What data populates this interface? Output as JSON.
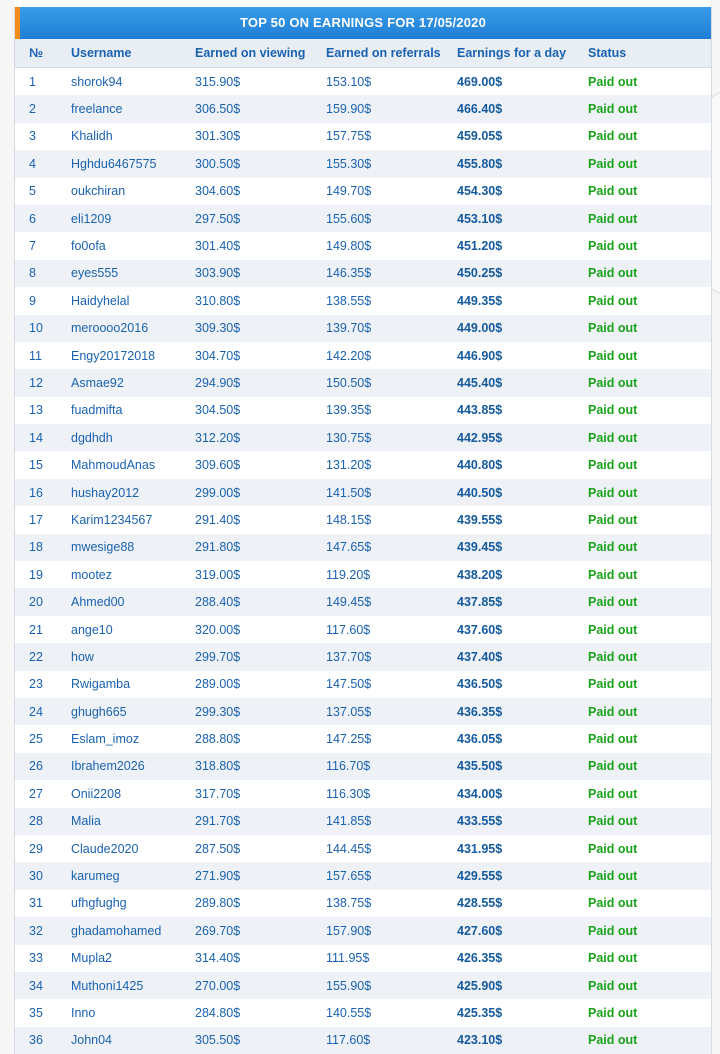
{
  "title": "TOP 50 ON EARNINGS FOR 17/05/2020",
  "columns": {
    "num": "№",
    "username": "Username",
    "viewing": "Earned on viewing",
    "referrals": "Earned on referrals",
    "day": "Earnings for a day",
    "status": "Status"
  },
  "rows": [
    {
      "n": "1",
      "user": "shorok94",
      "view": "315.90$",
      "ref": "153.10$",
      "day": "469.00$",
      "status": "Paid out"
    },
    {
      "n": "2",
      "user": "freelance",
      "view": "306.50$",
      "ref": "159.90$",
      "day": "466.40$",
      "status": "Paid out"
    },
    {
      "n": "3",
      "user": "Khalidh",
      "view": "301.30$",
      "ref": "157.75$",
      "day": "459.05$",
      "status": "Paid out"
    },
    {
      "n": "4",
      "user": "Hghdu6467575",
      "view": "300.50$",
      "ref": "155.30$",
      "day": "455.80$",
      "status": "Paid out"
    },
    {
      "n": "5",
      "user": "oukchiran",
      "view": "304.60$",
      "ref": "149.70$",
      "day": "454.30$",
      "status": "Paid out"
    },
    {
      "n": "6",
      "user": "eli1209",
      "view": "297.50$",
      "ref": "155.60$",
      "day": "453.10$",
      "status": "Paid out"
    },
    {
      "n": "7",
      "user": "fo0ofa",
      "view": "301.40$",
      "ref": "149.80$",
      "day": "451.20$",
      "status": "Paid out"
    },
    {
      "n": "8",
      "user": "eyes555",
      "view": "303.90$",
      "ref": "146.35$",
      "day": "450.25$",
      "status": "Paid out"
    },
    {
      "n": "9",
      "user": "Haidyhelal",
      "view": "310.80$",
      "ref": "138.55$",
      "day": "449.35$",
      "status": "Paid out"
    },
    {
      "n": "10",
      "user": "meroooo2016",
      "view": "309.30$",
      "ref": "139.70$",
      "day": "449.00$",
      "status": "Paid out"
    },
    {
      "n": "11",
      "user": "Engy20172018",
      "view": "304.70$",
      "ref": "142.20$",
      "day": "446.90$",
      "status": "Paid out"
    },
    {
      "n": "12",
      "user": "Asmae92",
      "view": "294.90$",
      "ref": "150.50$",
      "day": "445.40$",
      "status": "Paid out"
    },
    {
      "n": "13",
      "user": "fuadmifta",
      "view": "304.50$",
      "ref": "139.35$",
      "day": "443.85$",
      "status": "Paid out"
    },
    {
      "n": "14",
      "user": "dgdhdh",
      "view": "312.20$",
      "ref": "130.75$",
      "day": "442.95$",
      "status": "Paid out"
    },
    {
      "n": "15",
      "user": "MahmoudAnas",
      "view": "309.60$",
      "ref": "131.20$",
      "day": "440.80$",
      "status": "Paid out"
    },
    {
      "n": "16",
      "user": "hushay2012",
      "view": "299.00$",
      "ref": "141.50$",
      "day": "440.50$",
      "status": "Paid out"
    },
    {
      "n": "17",
      "user": "Karim1234567",
      "view": "291.40$",
      "ref": "148.15$",
      "day": "439.55$",
      "status": "Paid out"
    },
    {
      "n": "18",
      "user": "mwesige88",
      "view": "291.80$",
      "ref": "147.65$",
      "day": "439.45$",
      "status": "Paid out"
    },
    {
      "n": "19",
      "user": "mootez",
      "view": "319.00$",
      "ref": "119.20$",
      "day": "438.20$",
      "status": "Paid out"
    },
    {
      "n": "20",
      "user": "Ahmed00",
      "view": "288.40$",
      "ref": "149.45$",
      "day": "437.85$",
      "status": "Paid out"
    },
    {
      "n": "21",
      "user": "ange10",
      "view": "320.00$",
      "ref": "117.60$",
      "day": "437.60$",
      "status": "Paid out"
    },
    {
      "n": "22",
      "user": "how",
      "view": "299.70$",
      "ref": "137.70$",
      "day": "437.40$",
      "status": "Paid out"
    },
    {
      "n": "23",
      "user": "Rwigamba",
      "view": "289.00$",
      "ref": "147.50$",
      "day": "436.50$",
      "status": "Paid out"
    },
    {
      "n": "24",
      "user": "ghugh665",
      "view": "299.30$",
      "ref": "137.05$",
      "day": "436.35$",
      "status": "Paid out"
    },
    {
      "n": "25",
      "user": "Eslam_imoz",
      "view": "288.80$",
      "ref": "147.25$",
      "day": "436.05$",
      "status": "Paid out"
    },
    {
      "n": "26",
      "user": "Ibrahem2026",
      "view": "318.80$",
      "ref": "116.70$",
      "day": "435.50$",
      "status": "Paid out"
    },
    {
      "n": "27",
      "user": "Onii2208",
      "view": "317.70$",
      "ref": "116.30$",
      "day": "434.00$",
      "status": "Paid out"
    },
    {
      "n": "28",
      "user": "Malia",
      "view": "291.70$",
      "ref": "141.85$",
      "day": "433.55$",
      "status": "Paid out"
    },
    {
      "n": "29",
      "user": "Claude2020",
      "view": "287.50$",
      "ref": "144.45$",
      "day": "431.95$",
      "status": "Paid out"
    },
    {
      "n": "30",
      "user": "karumeg",
      "view": "271.90$",
      "ref": "157.65$",
      "day": "429.55$",
      "status": "Paid out"
    },
    {
      "n": "31",
      "user": "ufhgfughg",
      "view": "289.80$",
      "ref": "138.75$",
      "day": "428.55$",
      "status": "Paid out"
    },
    {
      "n": "32",
      "user": "ghadamohamed",
      "view": "269.70$",
      "ref": "157.90$",
      "day": "427.60$",
      "status": "Paid out"
    },
    {
      "n": "33",
      "user": "Mupla2",
      "view": "314.40$",
      "ref": "111.95$",
      "day": "426.35$",
      "status": "Paid out"
    },
    {
      "n": "34",
      "user": "Muthoni1425",
      "view": "270.00$",
      "ref": "155.90$",
      "day": "425.90$",
      "status": "Paid out"
    },
    {
      "n": "35",
      "user": "Inno",
      "view": "284.80$",
      "ref": "140.55$",
      "day": "425.35$",
      "status": "Paid out"
    },
    {
      "n": "36",
      "user": "John04",
      "view": "305.50$",
      "ref": "117.60$",
      "day": "423.10$",
      "status": "Paid out"
    }
  ]
}
